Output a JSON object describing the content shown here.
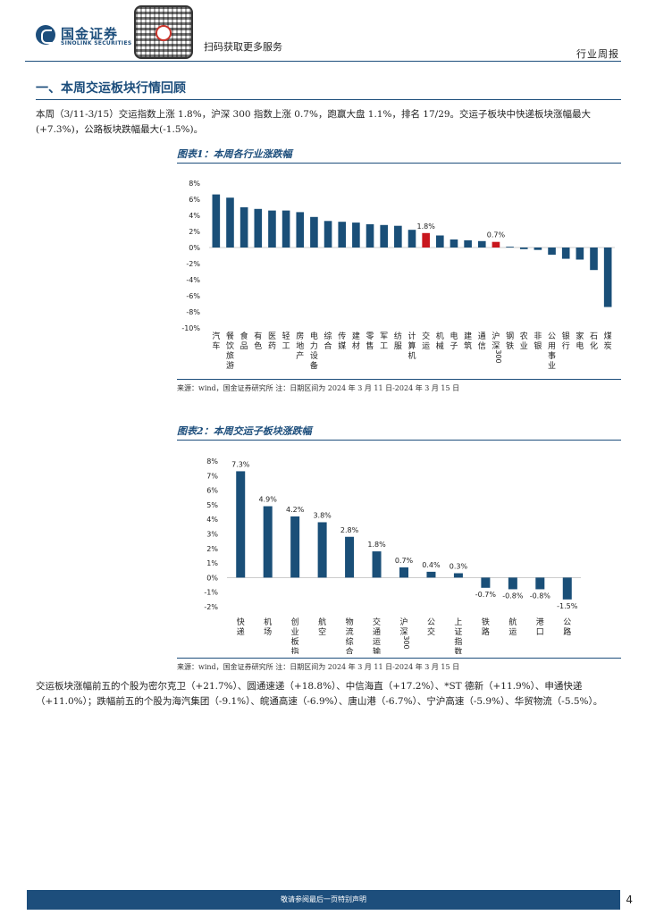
{
  "header": {
    "logo_cn": "国金证券",
    "logo_en": "SINOLINK SECURITIES",
    "qr_text": "扫码获取更多服务",
    "report_type": "行业周报"
  },
  "section": {
    "title": "一、本周交运板块行情回顾",
    "intro": "本周（3/11-3/15）交运指数上涨 1.8%，沪深 300 指数上涨 0.7%，跑赢大盘 1.1%，排名 17/29。交运子板块中快递板块涨幅最大(+7.3%)，公路板块跌幅最大(-1.5%)。",
    "outro": "交运板块涨幅前五的个股为密尔克卫（+21.7%）、圆通速递（+18.8%）、中信海直（+17.2%）、*ST 德新（+11.9%）、申通快递（+11.0%）；跌幅前五的个股为海汽集团（-9.1%）、皖通高速（-6.9%）、唐山港（-6.7%）、宁沪高速（-5.9%）、华贸物流（-5.5%）。"
  },
  "figure1": {
    "title": "图表1：本周各行业涨跌幅",
    "source": "来源：wind，国金证券研究所    注：日期区间为 2024 年 3 月 11 日-2024 年 3 月 15 日"
  },
  "figure2": {
    "title": "图表2：本周交运子板块涨跌幅",
    "source": "来源：wind，国金证券研究所    注：日期区间为 2024 年 3 月 11 日-2024 年 3 月 15 日"
  },
  "footer": {
    "disclaimer": "敬请参阅最后一页特别声明",
    "page": "4"
  },
  "colors": {
    "bar": "#1a4f78",
    "highlight": "#c8161d",
    "brand": "#1d4e7c"
  },
  "chart_data": [
    {
      "type": "bar",
      "title": "本周各行业涨跌幅",
      "categories": [
        "汽车",
        "餐饮旅游",
        "食品",
        "有色",
        "医药",
        "轻工",
        "房地产",
        "电力设备",
        "综合",
        "传媒",
        "建材",
        "零售",
        "军工",
        "纺服",
        "计算机",
        "交运",
        "机械",
        "电子",
        "建筑",
        "通信",
        "沪深300",
        "钢铁",
        "农业",
        "非银",
        "公用事业",
        "银行",
        "家电",
        "石化",
        "煤炭"
      ],
      "values": [
        6.6,
        6.2,
        5.0,
        4.8,
        4.6,
        4.6,
        4.4,
        3.8,
        3.3,
        3.2,
        3.1,
        2.9,
        2.8,
        2.7,
        2.2,
        1.8,
        1.5,
        1.0,
        0.9,
        0.8,
        0.7,
        0.1,
        -0.2,
        -0.3,
        -0.9,
        -1.4,
        -1.5,
        -2.8,
        -7.4
      ],
      "highlight": [
        "交运",
        "沪深300"
      ],
      "data_labels": {
        "交运": "1.8%",
        "沪深300": "0.7%"
      },
      "yticks": [
        "8%",
        "6%",
        "4%",
        "2%",
        "0%",
        "-2%",
        "-4%",
        "-6%",
        "-8%",
        "-10%"
      ],
      "ylim": [
        -10,
        8
      ]
    },
    {
      "type": "bar",
      "title": "本周交运子板块涨跌幅",
      "categories": [
        "快递",
        "机场",
        "创业板指",
        "航空",
        "物流综合",
        "交通运输",
        "沪深300",
        "公交",
        "上证指数",
        "铁路",
        "航运",
        "港口",
        "公路"
      ],
      "values": [
        7.3,
        4.9,
        4.2,
        3.8,
        2.8,
        1.8,
        0.7,
        0.4,
        0.3,
        -0.7,
        -0.8,
        -0.8,
        -1.5
      ],
      "labels": [
        "7.3%",
        "4.9%",
        "4.2%",
        "3.8%",
        "2.8%",
        "1.8%",
        "0.7%",
        "0.4%",
        "0.3%",
        "-0.7%",
        "-0.8%",
        "-0.8%",
        "-1.5%"
      ],
      "yticks": [
        "8%",
        "7%",
        "6%",
        "5%",
        "4%",
        "3%",
        "2%",
        "1%",
        "0%",
        "-1%",
        "-2%"
      ],
      "ylim": [
        -2,
        8
      ]
    }
  ]
}
